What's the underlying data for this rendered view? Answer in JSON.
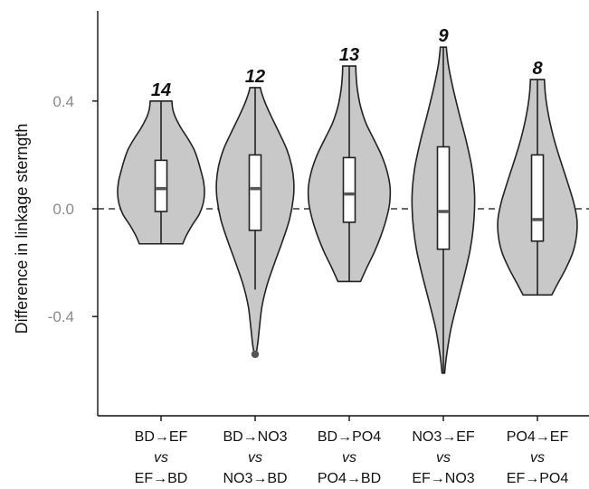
{
  "chart_data": {
    "type": "violin",
    "ylabel": "Difference in linkage sterngth",
    "ylim": [
      -0.76,
      0.73
    ],
    "yticks": [
      {
        "value": 0.4,
        "label": "0.4"
      },
      {
        "value": 0.0,
        "label": "0.0"
      },
      {
        "value": -0.4,
        "label": "-0.4"
      }
    ],
    "reference_line": {
      "value": 0.0,
      "style": "dashed"
    },
    "colors": {
      "fill": "#c8c8c8",
      "stroke": "#222222",
      "box": "#ffffff",
      "median": "#555555",
      "outlier": "#555555",
      "tick_text": "#8a8a8a"
    },
    "groups": [
      {
        "label_top": "BD→EF",
        "label_mid": "vs",
        "label_bottom": "EF→BD",
        "count": "14",
        "min": -0.13,
        "max": 0.4,
        "whisker_low": -0.13,
        "whisker_high": 0.4,
        "q1": -0.01,
        "median": 0.075,
        "q3": 0.18,
        "outliers": [],
        "density": [
          [
            -0.13,
            0.5
          ],
          [
            -0.1,
            0.58
          ],
          [
            -0.06,
            0.72
          ],
          [
            -0.02,
            0.88
          ],
          [
            0.02,
            0.97
          ],
          [
            0.06,
            1.0
          ],
          [
            0.1,
            0.98
          ],
          [
            0.14,
            0.92
          ],
          [
            0.18,
            0.85
          ],
          [
            0.22,
            0.76
          ],
          [
            0.26,
            0.62
          ],
          [
            0.3,
            0.46
          ],
          [
            0.34,
            0.33
          ],
          [
            0.37,
            0.27
          ],
          [
            0.4,
            0.25
          ]
        ]
      },
      {
        "label_top": "BD→NO3",
        "label_mid": "vs",
        "label_bottom": "NO3→BD",
        "count": "12",
        "min": -0.54,
        "max": 0.45,
        "whisker_low": -0.3,
        "whisker_high": 0.45,
        "q1": -0.08,
        "median": 0.075,
        "q3": 0.2,
        "outliers": [
          -0.54
        ],
        "density": [
          [
            -0.54,
            0.02
          ],
          [
            -0.5,
            0.06
          ],
          [
            -0.44,
            0.1
          ],
          [
            -0.36,
            0.16
          ],
          [
            -0.28,
            0.28
          ],
          [
            -0.2,
            0.45
          ],
          [
            -0.12,
            0.63
          ],
          [
            -0.04,
            0.79
          ],
          [
            0.04,
            0.88
          ],
          [
            0.1,
            0.89
          ],
          [
            0.16,
            0.84
          ],
          [
            0.22,
            0.73
          ],
          [
            0.28,
            0.56
          ],
          [
            0.34,
            0.38
          ],
          [
            0.39,
            0.24
          ],
          [
            0.43,
            0.15
          ],
          [
            0.45,
            0.12
          ]
        ]
      },
      {
        "label_top": "BD→PO4",
        "label_mid": "vs",
        "label_bottom": "PO4→BD",
        "count": "13",
        "min": -0.27,
        "max": 0.53,
        "whisker_low": -0.27,
        "whisker_high": 0.53,
        "q1": -0.05,
        "median": 0.055,
        "q3": 0.19,
        "outliers": [],
        "density": [
          [
            -0.27,
            0.26
          ],
          [
            -0.22,
            0.4
          ],
          [
            -0.16,
            0.58
          ],
          [
            -0.1,
            0.73
          ],
          [
            -0.04,
            0.85
          ],
          [
            0.02,
            0.93
          ],
          [
            0.08,
            0.94
          ],
          [
            0.14,
            0.87
          ],
          [
            0.2,
            0.74
          ],
          [
            0.26,
            0.56
          ],
          [
            0.32,
            0.38
          ],
          [
            0.38,
            0.26
          ],
          [
            0.44,
            0.19
          ],
          [
            0.49,
            0.16
          ],
          [
            0.53,
            0.15
          ]
        ]
      },
      {
        "label_top": "NO3→EF",
        "label_mid": "vs",
        "label_bottom": "EF→NO3",
        "count": "9",
        "min": -0.61,
        "max": 0.6,
        "whisker_low": -0.61,
        "whisker_high": 0.6,
        "q1": -0.15,
        "median": -0.01,
        "q3": 0.23,
        "outliers": [],
        "density": [
          [
            -0.61,
            0.03
          ],
          [
            -0.55,
            0.07
          ],
          [
            -0.45,
            0.17
          ],
          [
            -0.35,
            0.32
          ],
          [
            -0.25,
            0.48
          ],
          [
            -0.15,
            0.62
          ],
          [
            -0.05,
            0.7
          ],
          [
            0.05,
            0.72
          ],
          [
            0.15,
            0.66
          ],
          [
            0.25,
            0.53
          ],
          [
            0.35,
            0.37
          ],
          [
            0.45,
            0.22
          ],
          [
            0.53,
            0.12
          ],
          [
            0.58,
            0.08
          ],
          [
            0.6,
            0.07
          ]
        ]
      },
      {
        "label_top": "PO4→EF",
        "label_mid": "vs",
        "label_bottom": "EF→PO4",
        "count": "8",
        "min": -0.32,
        "max": 0.48,
        "whisker_low": -0.32,
        "whisker_high": 0.48,
        "q1": -0.12,
        "median": -0.04,
        "q3": 0.2,
        "outliers": [],
        "density": [
          [
            -0.32,
            0.33
          ],
          [
            -0.28,
            0.46
          ],
          [
            -0.22,
            0.66
          ],
          [
            -0.16,
            0.82
          ],
          [
            -0.1,
            0.9
          ],
          [
            -0.04,
            0.91
          ],
          [
            0.02,
            0.84
          ],
          [
            0.08,
            0.73
          ],
          [
            0.14,
            0.61
          ],
          [
            0.2,
            0.49
          ],
          [
            0.26,
            0.38
          ],
          [
            0.32,
            0.29
          ],
          [
            0.38,
            0.22
          ],
          [
            0.43,
            0.18
          ],
          [
            0.48,
            0.16
          ]
        ]
      }
    ]
  }
}
